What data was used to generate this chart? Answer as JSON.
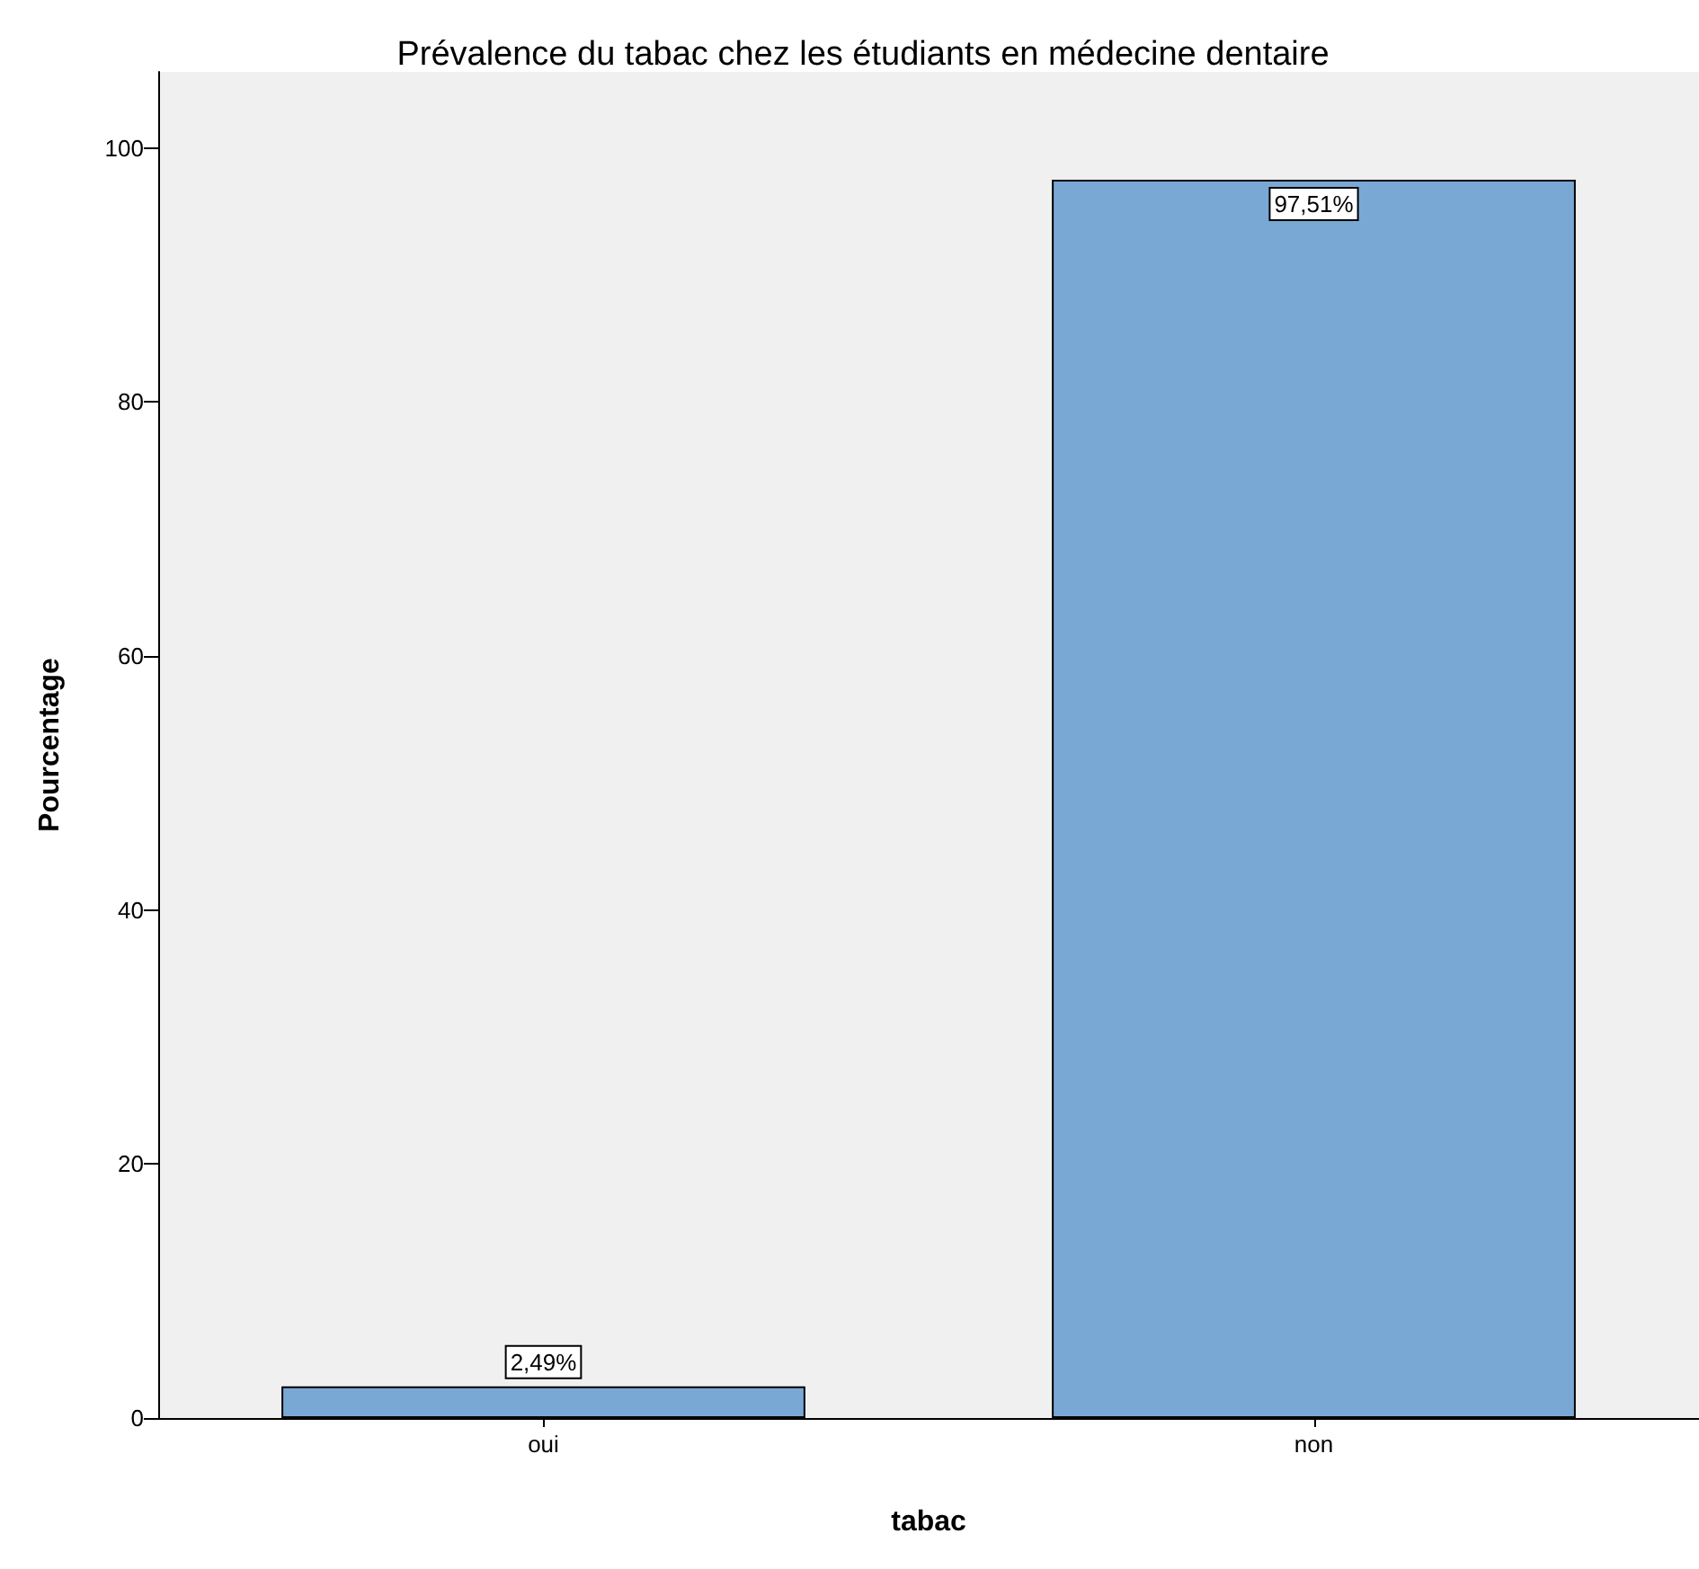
{
  "chart_data": {
    "type": "bar",
    "title": "Prévalence du tabac chez les étudiants en médecine dentaire",
    "xlabel": "tabac",
    "ylabel": "Pourcentage",
    "categories": [
      "oui",
      "non"
    ],
    "values": [
      2.49,
      97.51
    ],
    "value_labels": [
      "2,49%",
      "97,51%"
    ],
    "color": "#79a8d5",
    "ylim": [
      0,
      106
    ],
    "yticks": [
      0,
      20,
      40,
      60,
      80,
      100
    ],
    "grid": false
  }
}
